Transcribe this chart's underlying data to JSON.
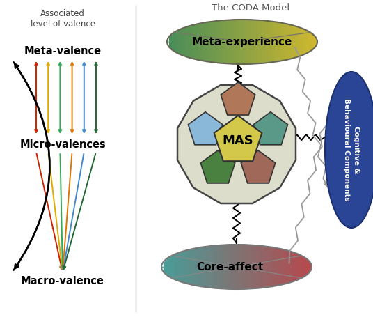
{
  "title_left": "Associated\nlevel of valence",
  "title_right": "The CODA Model",
  "label_meta_valence": "Meta-valence",
  "label_micro_valences": "Micro-valences",
  "label_macro_valence": "Macro-valence",
  "label_meta_experience": "Meta-experience",
  "label_mas": "MAS",
  "label_core_affect": "Core-affect",
  "label_cognitive": "Cognitive &\nBehavioural Components",
  "arrow_colors": [
    "#cc2200",
    "#ddaa00",
    "#33aa55",
    "#dd7700",
    "#4488cc",
    "#226633"
  ],
  "bg_color": "#ffffff",
  "fig_w": 5.36,
  "fig_h": 4.55,
  "dpi": 100
}
